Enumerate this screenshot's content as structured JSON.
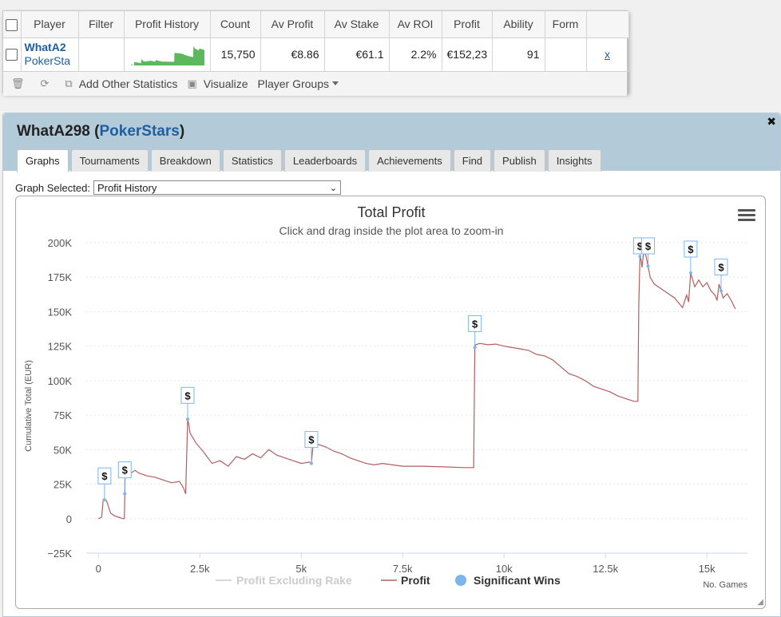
{
  "player_table": {
    "headers": [
      "Player",
      "Filter",
      "Profit History",
      "Count",
      "Av Profit",
      "Av Stake",
      "Av ROI",
      "Profit",
      "Ability",
      "Form"
    ],
    "row": {
      "player_name": "WhatA2",
      "player_site": "PokerSta",
      "count": "15,750",
      "av_profit": "€8.86",
      "av_stake": "€61.1",
      "av_roi": "2.2%",
      "profit": "€152,23",
      "ability": "91",
      "form": "",
      "remove": "x"
    },
    "toolbar": {
      "add_other_statistics": "Add Other Statistics",
      "visualize": "Visualize",
      "player_groups": "Player Groups"
    }
  },
  "detail": {
    "player_name": "WhatA298",
    "site_open": " (",
    "site": "PokerStars",
    "site_close": ")",
    "tabs": [
      "Graphs",
      "Tournaments",
      "Breakdown",
      "Statistics",
      "Leaderboards",
      "Achievements",
      "Find",
      "Publish",
      "Insights"
    ],
    "active_tab": "Graphs",
    "graph_selected_label": "Graph Selected:",
    "graph_selected_value": "Profit History",
    "close_symbol": "✖"
  },
  "colors": {
    "profit_line": "#b25e5e",
    "excluding_rake": "#cccccc",
    "significant_wins": "#7cb5ec",
    "link": "#1f5fa0",
    "header_bg": "#b3cbd8",
    "sparkline": "#5cb85c"
  },
  "chart_data": {
    "type": "line",
    "title": "Total Profit",
    "subtitle": "Click and drag inside the plot area to zoom-in",
    "xlabel": "No. Games",
    "ylabel": "Cumulative Total (EUR)",
    "xlim": [
      -300,
      16000
    ],
    "ylim": [
      -25000,
      200000
    ],
    "x_ticks": [
      0,
      2500,
      5000,
      7500,
      10000,
      12500,
      15000
    ],
    "x_tick_labels": [
      "0",
      "2.5k",
      "5k",
      "7.5k",
      "10k",
      "12.5k",
      "15k"
    ],
    "y_ticks": [
      -25000,
      0,
      25000,
      50000,
      75000,
      100000,
      125000,
      150000,
      175000,
      200000
    ],
    "y_tick_labels": [
      "−25K",
      "0",
      "25K",
      "50K",
      "75K",
      "100K",
      "125K",
      "150K",
      "175K",
      "200K"
    ],
    "grid": "horizontal",
    "legend_position": "bottom",
    "legend": [
      "Profit Excluding Rake",
      "Profit",
      "Significant Wins"
    ],
    "series": [
      {
        "name": "Profit",
        "x": [
          0,
          80,
          120,
          200,
          300,
          400,
          500,
          600,
          640,
          660,
          700,
          800,
          900,
          1000,
          1200,
          1400,
          1600,
          1800,
          2000,
          2100,
          2150,
          2200,
          2230,
          2260,
          2300,
          2400,
          2600,
          2800,
          3000,
          3200,
          3400,
          3600,
          3800,
          4000,
          4200,
          4400,
          4600,
          4800,
          5000,
          5200,
          5250,
          5300,
          5400,
          5600,
          5800,
          6000,
          6200,
          6400,
          6600,
          6800,
          7000,
          7500,
          8000,
          8500,
          9000,
          9250,
          9280,
          9300,
          9400,
          9600,
          9800,
          10000,
          10200,
          10400,
          10600,
          10800,
          11000,
          11200,
          11400,
          11600,
          11800,
          12000,
          12200,
          12400,
          12600,
          12800,
          13000,
          13200,
          13300,
          13320,
          13350,
          13380,
          13400,
          13450,
          13500,
          13550,
          13600,
          13700,
          13800,
          14000,
          14200,
          14400,
          14500,
          14550,
          14600,
          14700,
          14800,
          14900,
          15000,
          15100,
          15200,
          15250,
          15300,
          15400,
          15500,
          15600,
          15700
        ],
        "values": [
          0,
          1000,
          14000,
          13000,
          4000,
          2000,
          1000,
          0,
          0,
          36000,
          34000,
          33000,
          35000,
          33000,
          31000,
          30000,
          28000,
          26000,
          27000,
          22000,
          18000,
          72000,
          68000,
          62000,
          60000,
          55000,
          48000,
          40000,
          42000,
          38000,
          45000,
          43000,
          47000,
          44000,
          50000,
          46000,
          44000,
          42000,
          40000,
          41000,
          40000,
          56000,
          54000,
          52000,
          49000,
          47000,
          44000,
          42000,
          40000,
          39000,
          40000,
          38000,
          38000,
          37500,
          37000,
          37000,
          124000,
          126000,
          127000,
          126000,
          126500,
          125000,
          124000,
          123000,
          122000,
          119000,
          118000,
          115000,
          110000,
          105000,
          103000,
          100000,
          96000,
          94000,
          92000,
          89000,
          87000,
          85000,
          85000,
          155000,
          190000,
          187000,
          182000,
          195000,
          190000,
          183000,
          175000,
          170000,
          168000,
          164000,
          160000,
          153000,
          162000,
          157000,
          178000,
          168000,
          173000,
          168000,
          171000,
          165000,
          162000,
          158000,
          170000,
          160000,
          163000,
          158000,
          152000
        ]
      }
    ],
    "significant_wins_x": [
      150,
      650,
      2200,
      5250,
      9280,
      13350,
      13550,
      14600,
      15350
    ]
  }
}
